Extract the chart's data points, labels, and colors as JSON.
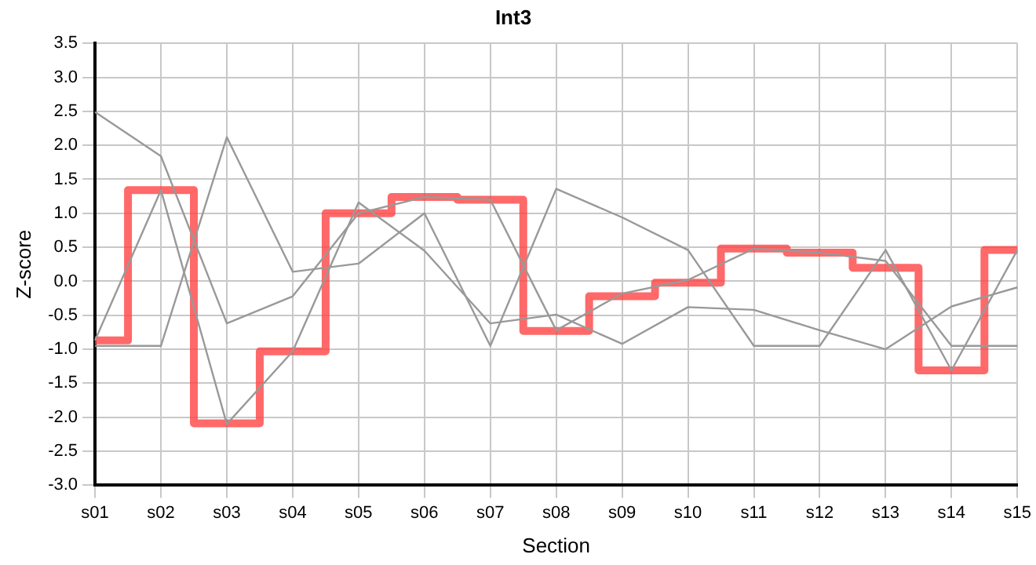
{
  "chart_data": {
    "type": "line",
    "title": "Int3",
    "xlabel": "Section",
    "ylabel": "Z-score",
    "categories": [
      "s01",
      "s02",
      "s03",
      "s04",
      "s05",
      "s06",
      "s07",
      "s08",
      "s09",
      "s10",
      "s11",
      "s12",
      "s13",
      "s14",
      "s15"
    ],
    "ylim": [
      -3,
      3.5
    ],
    "yticks": [
      3.5,
      {
        "value": 3,
        "label": "3.0"
      },
      2.5,
      {
        "value": 2,
        "label": "2.0"
      },
      1.5,
      {
        "value": 1,
        "label": "1.0"
      },
      0.5,
      {
        "value": 0,
        "label": "0.0"
      },
      -0.5,
      {
        "value": -1,
        "label": "-1.0"
      },
      -1.5,
      {
        "value": -2,
        "label": "-2.0"
      },
      -2.5,
      {
        "value": -3,
        "label": "-3.0"
      }
    ],
    "grid": true,
    "marker": "none",
    "line_style": "solid",
    "series": [
      {
        "color": "#999999",
        "values": [
          2.49,
          1.84,
          -0.62,
          -0.22,
          1.0,
          1.24,
          1.2,
          -0.72,
          -0.18,
          0.02,
          0.48,
          0.42,
          0.3,
          -0.95,
          -0.95
        ]
      },
      {
        "color": "#999999",
        "values": [
          -0.87,
          1.34,
          -2.1,
          -1.03,
          1.16,
          0.45,
          -0.62,
          -0.49,
          -0.92,
          -0.38,
          -0.42,
          -0.72,
          -1.0,
          -0.37,
          -0.09
        ]
      },
      {
        "color": "#999999",
        "values": [
          -0.95,
          -0.95,
          2.12,
          0.14,
          0.26,
          1.0,
          -0.95,
          1.36,
          0.94,
          0.46,
          -0.95,
          -0.95,
          0.46,
          -1.31,
          0.46
        ]
      },
      {
        "type": "step",
        "color": "#ff4444",
        "values": [
          -0.87,
          1.34,
          -2.09,
          -1.03,
          1.0,
          1.24,
          1.2,
          -0.73,
          -0.22,
          -0.02,
          0.48,
          0.42,
          0.2,
          -1.31,
          0.46
        ]
      }
    ]
  }
}
